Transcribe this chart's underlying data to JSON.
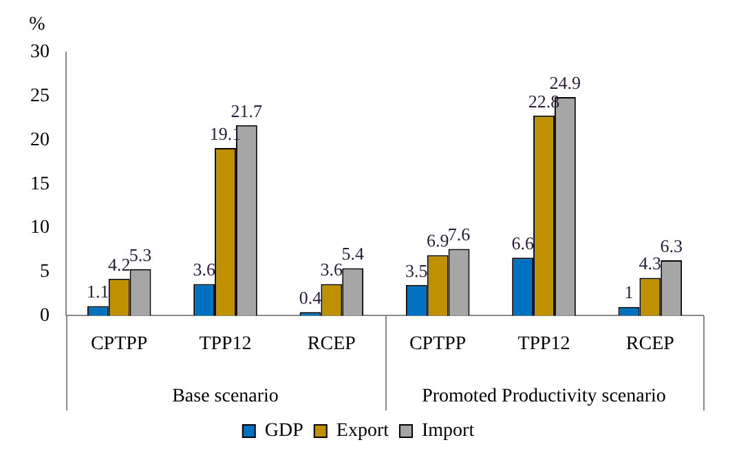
{
  "chart_data": {
    "type": "bar",
    "ylabel": "%",
    "categories": [
      "CPTPP",
      "TPP12",
      "RCEP",
      "CPTPP",
      "TPP12",
      "RCEP"
    ],
    "annotations": [
      "Base scenario",
      "Promoted Productivity scenario"
    ],
    "series": [
      {
        "name": "GDP",
        "color": "#0070c0",
        "values": [
          1.1,
          3.6,
          0.4,
          3.5,
          6.6,
          1
        ]
      },
      {
        "name": "Export",
        "color": "#bf9000",
        "values": [
          4.2,
          19.1,
          3.6,
          6.9,
          22.8,
          4.3
        ]
      },
      {
        "name": "Import",
        "color": "#a6a6a6",
        "values": [
          5.3,
          21.7,
          5.4,
          7.6,
          24.9,
          6.3
        ]
      }
    ],
    "ylim": [
      0,
      30
    ],
    "yticks": [
      0,
      5,
      10,
      15,
      20,
      25,
      30
    ],
    "grid": false,
    "legend": "bottom",
    "data_labels": true
  }
}
